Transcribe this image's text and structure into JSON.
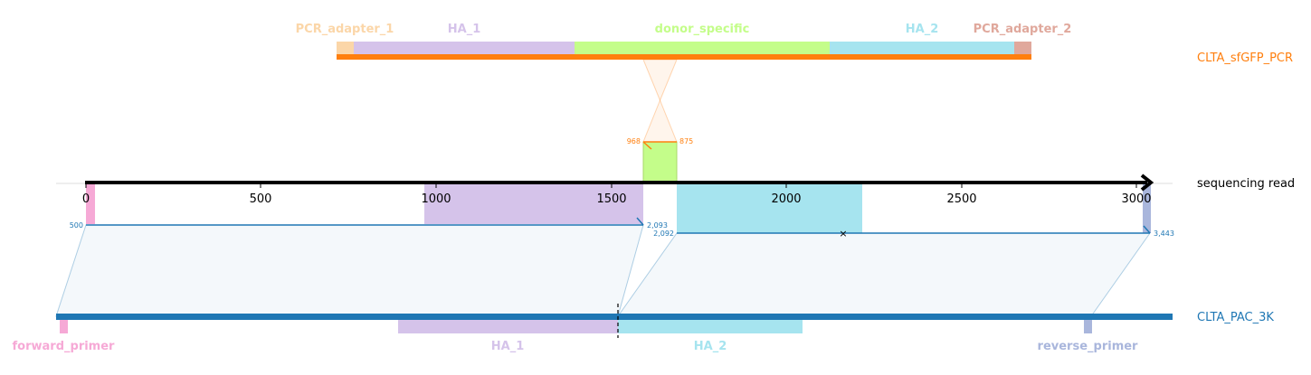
{
  "colors": {
    "pcr_adapter_1": "#fbd6a8",
    "ha_1": "#d5c3ea",
    "donor_specific": "#c4fd8a",
    "ha_2": "#a6e4ef",
    "pcr_adapter_2": "#e0a89c",
    "orange": "#ff7f0e",
    "blue": "#1f77b4",
    "pink": "#f6a9d6",
    "reverse_primer": "#a9b6dc"
  },
  "top_track": {
    "name": "CLTA_sfGFP_PCR",
    "features": [
      {
        "label": "PCR_adapter_1",
        "color_key": "pcr_adapter_1"
      },
      {
        "label": "HA_1",
        "color_key": "ha_1"
      },
      {
        "label": "donor_specific",
        "color_key": "donor_specific"
      },
      {
        "label": "HA_2",
        "color_key": "ha_2"
      },
      {
        "label": "PCR_adapter_2",
        "color_key": "pcr_adapter_2"
      }
    ],
    "junction_labels": {
      "left": "968",
      "right": "875"
    }
  },
  "read": {
    "name": "sequencing read",
    "axis_ticks": [
      "0",
      "500",
      "1000",
      "1500",
      "2000",
      "2500",
      "3000"
    ],
    "alignment_labels": {
      "a_start": "500",
      "a_end": "2,093",
      "b_start": "2,092",
      "b_end": "3,443"
    },
    "mismatch_mark": "×"
  },
  "bottom_track": {
    "name": "CLTA_PAC_3K",
    "features": [
      {
        "label": "forward_primer",
        "color_key": "pink"
      },
      {
        "label": "HA_1",
        "color_key": "ha_1"
      },
      {
        "label": "HA_2",
        "color_key": "ha_2"
      },
      {
        "label": "reverse_primer",
        "color_key": "reverse_primer"
      }
    ]
  }
}
